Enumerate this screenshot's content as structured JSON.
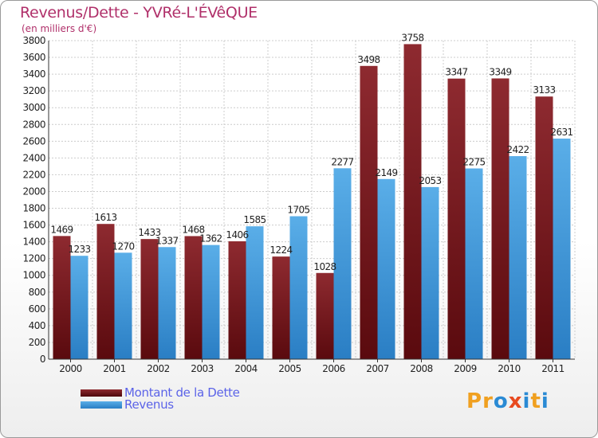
{
  "header": {
    "title": "Revenus/Dette - YVRé-L'ÉVêQUE",
    "subtitle": "(en milliers d'€)"
  },
  "colors": {
    "title": "#b0306a",
    "dette": "#7a1a22",
    "revenus": "#3a92d8",
    "legend_text": "#5b63e8"
  },
  "legend": {
    "items": [
      {
        "label": "Montant de la Dette",
        "color": "#6b0f14"
      },
      {
        "label": "Revenus",
        "color": "#3a96dc"
      }
    ]
  },
  "logo": {
    "text": "Proxiti",
    "letter_colors": [
      "#f0a020",
      "#f0a020",
      "#2a8ad4",
      "#e84a20",
      "#2a8ad4",
      "#f0a020",
      "#2a8ad4"
    ]
  },
  "chart_data": {
    "type": "bar",
    "categories": [
      "2000",
      "2001",
      "2002",
      "2003",
      "2004",
      "2005",
      "2006",
      "2007",
      "2008",
      "2009",
      "2010",
      "2011"
    ],
    "series": [
      {
        "name": "Montant de la Dette",
        "values": [
          1469,
          1613,
          1433,
          1468,
          1406,
          1224,
          1028,
          3498,
          3758,
          3347,
          3349,
          3133
        ]
      },
      {
        "name": "Revenus",
        "values": [
          1233,
          1270,
          1337,
          1362,
          1585,
          1705,
          2277,
          2149,
          2053,
          2275,
          2422,
          2631
        ]
      }
    ],
    "data_labels": [
      [
        "1469",
        "1613",
        "1433",
        "1468",
        "1406",
        "1224",
        "1028",
        "3498",
        "3758",
        "3347",
        "3349",
        "3133"
      ],
      [
        "1233",
        "1270",
        "1337",
        "1362",
        "1585",
        "1705",
        "2277",
        "2149",
        "2053",
        "2275",
        "2422",
        "2631"
      ]
    ],
    "title": "Revenus/Dette - YVRé-L'ÉVêQUE",
    "ylabel": "(en milliers d'€)",
    "ylim": [
      0,
      3800
    ],
    "yticks": [
      0,
      200,
      400,
      600,
      800,
      1000,
      1200,
      1400,
      1600,
      1800,
      2000,
      2200,
      2400,
      2600,
      2800,
      3000,
      3200,
      3400,
      3600,
      3800
    ],
    "grid": true,
    "legend_position": "bottom-left"
  }
}
